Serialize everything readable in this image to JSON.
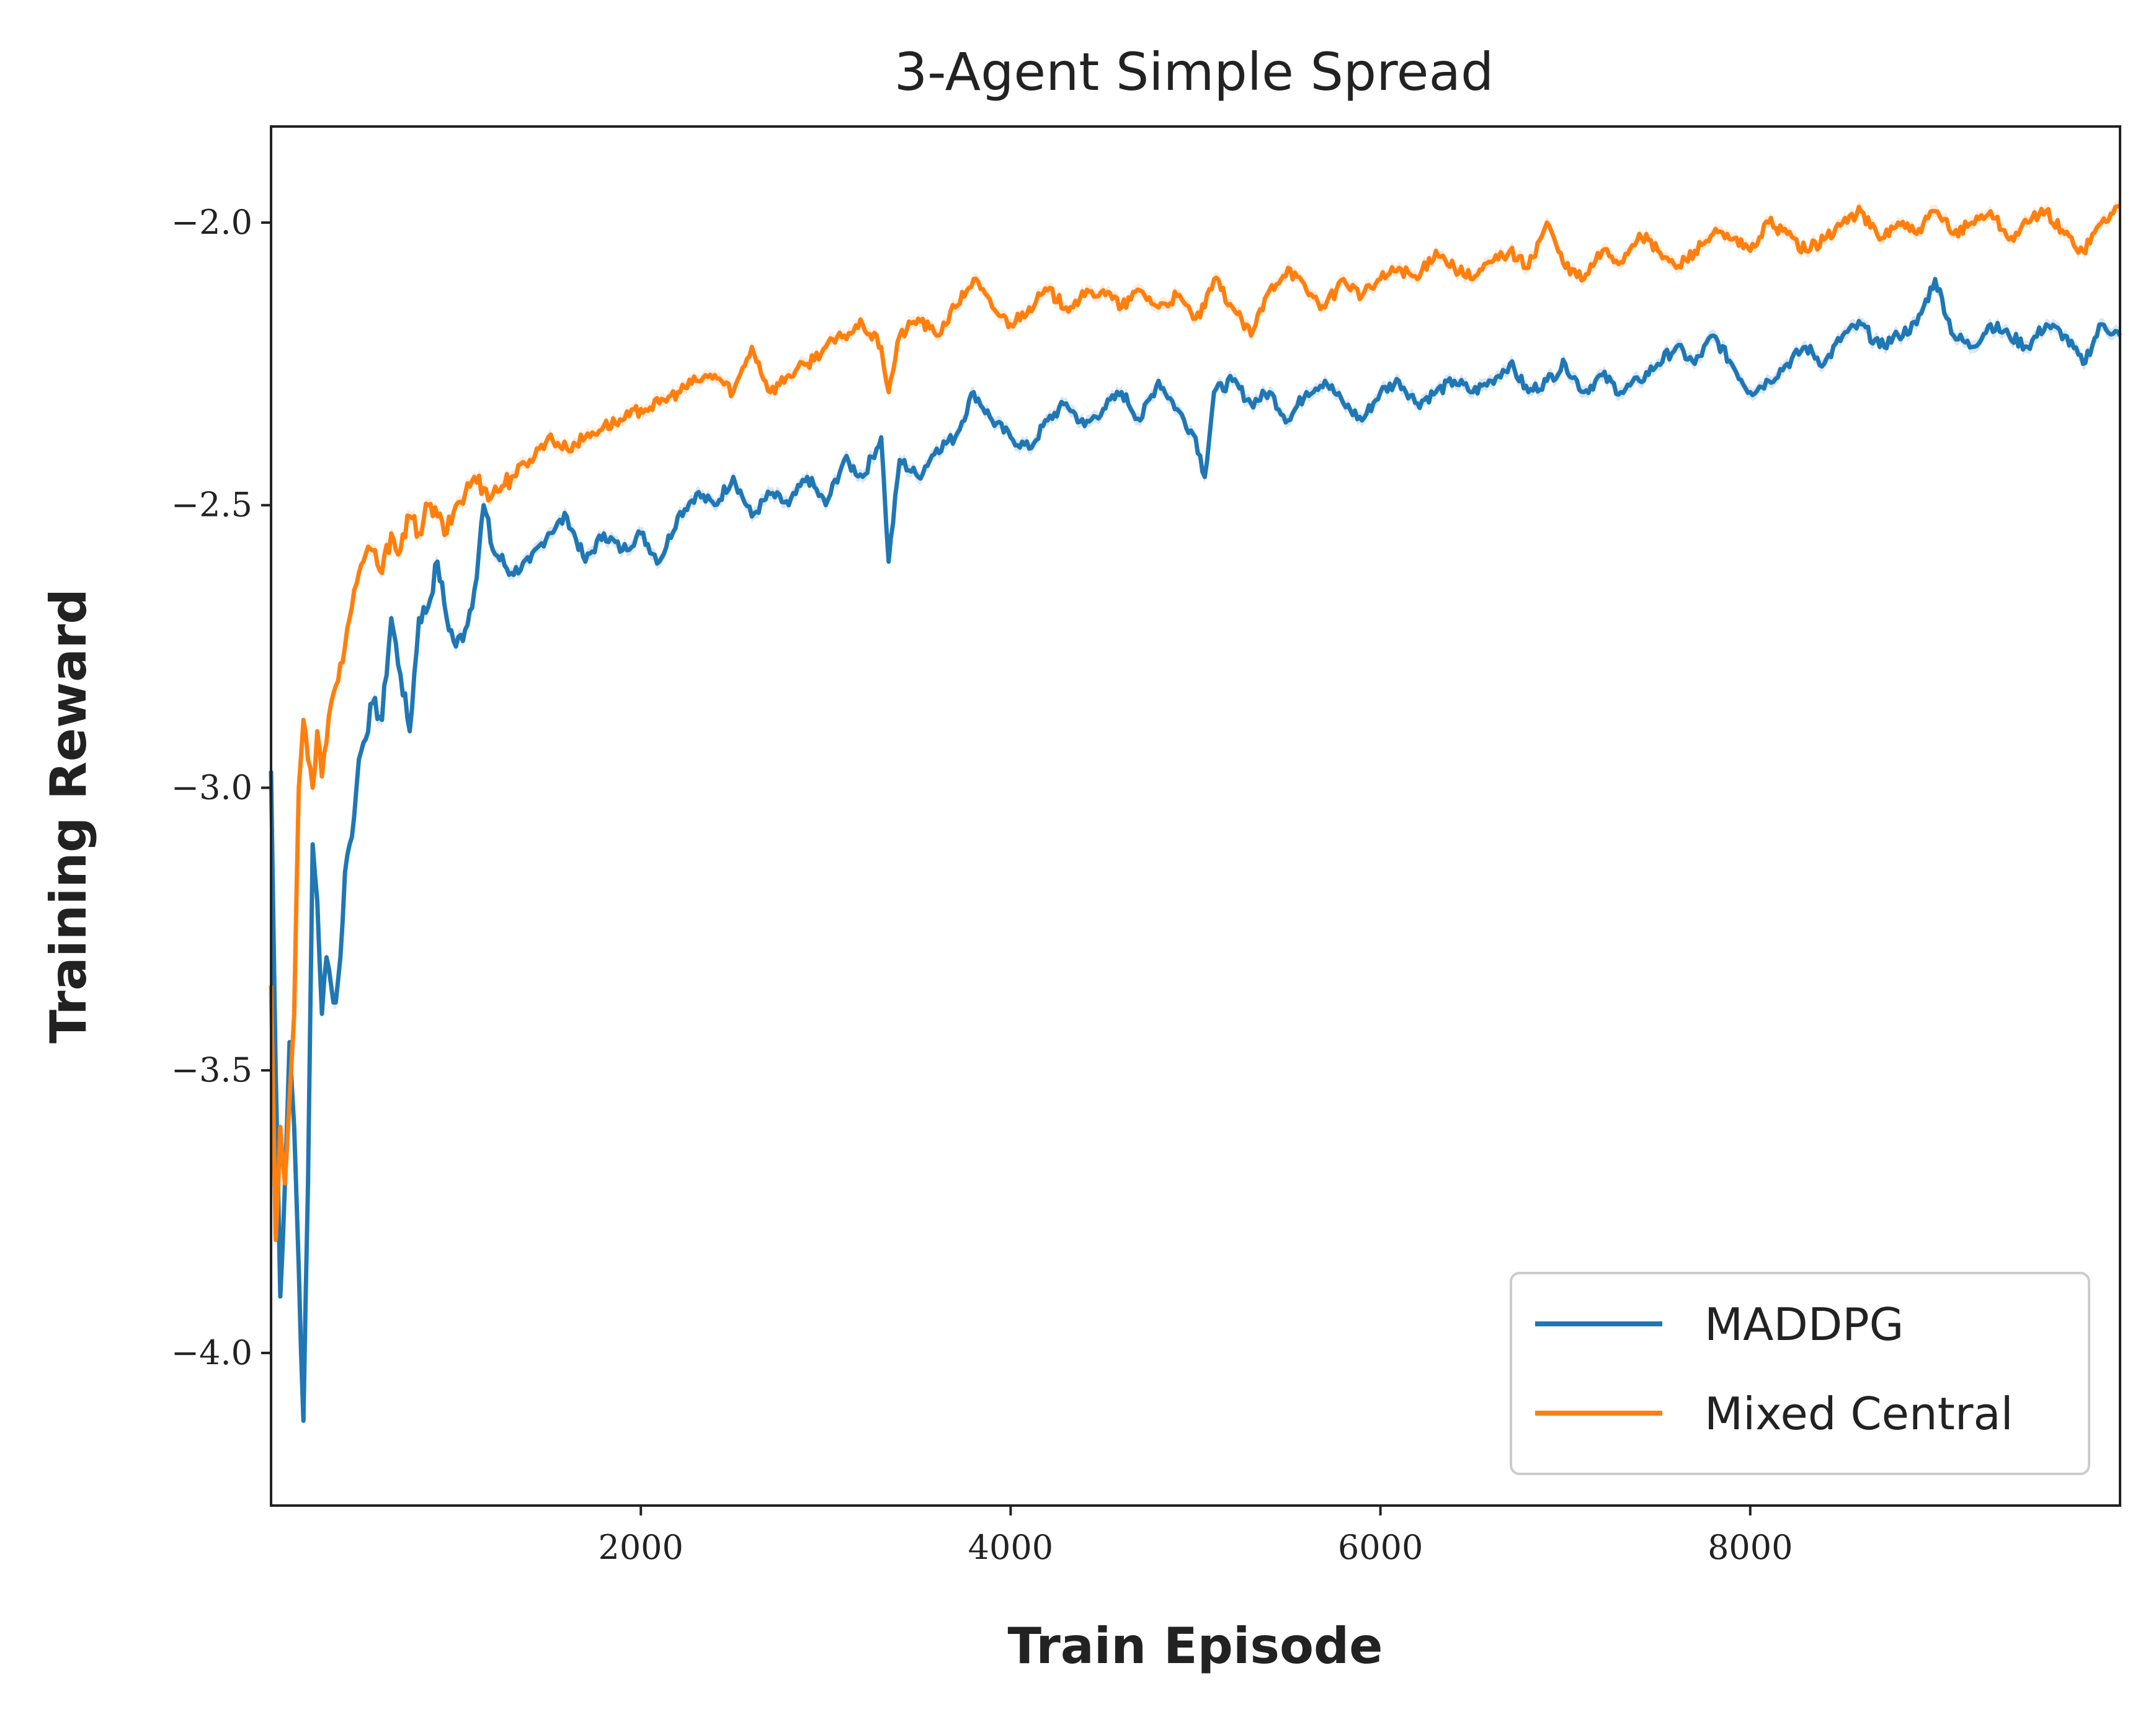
{
  "chart_data": {
    "type": "line",
    "title": "3-Agent Simple Spread",
    "xlabel": "Train Episode",
    "ylabel": "Training Reward",
    "xlim": [
      0,
      10000
    ],
    "ylim": [
      -4.27,
      -1.83
    ],
    "xticks": [
      2000,
      4000,
      6000,
      8000
    ],
    "xtick_labels": [
      "2000",
      "4000",
      "6000",
      "8000"
    ],
    "yticks": [
      -2.0,
      -2.5,
      -3.0,
      -3.5,
      -4.0
    ],
    "ytick_labels": [
      "−2.0",
      "−2.5",
      "−3.0",
      "−3.5",
      "−4.0"
    ],
    "grid": false,
    "legend_position": "lower-right",
    "series": [
      {
        "name": "MADDPG",
        "color": "#1f77b4",
        "band_color": "#c9ddf0",
        "x": [
          0,
          25,
          50,
          75,
          100,
          125,
          150,
          175,
          200,
          225,
          250,
          275,
          300,
          325,
          350,
          375,
          400,
          425,
          450,
          475,
          500,
          550,
          600,
          650,
          700,
          750,
          800,
          850,
          900,
          950,
          1000,
          1050,
          1100,
          1150,
          1200,
          1300,
          1400,
          1500,
          1600,
          1700,
          1800,
          1900,
          2000,
          2100,
          2200,
          2300,
          2400,
          2500,
          2600,
          2700,
          2800,
          2900,
          3000,
          3100,
          3200,
          3300,
          3340,
          3400,
          3500,
          3600,
          3700,
          3800,
          3900,
          4000,
          4100,
          4200,
          4300,
          4400,
          4500,
          4600,
          4700,
          4800,
          4900,
          5000,
          5050,
          5100,
          5200,
          5300,
          5400,
          5500,
          5600,
          5700,
          5800,
          5900,
          6000,
          6100,
          6200,
          6300,
          6400,
          6500,
          6600,
          6700,
          6800,
          6900,
          7000,
          7100,
          7200,
          7300,
          7400,
          7500,
          7600,
          7700,
          7800,
          7900,
          8000,
          8100,
          8200,
          8300,
          8400,
          8500,
          8600,
          8700,
          8800,
          8900,
          9000,
          9100,
          9200,
          9300,
          9400,
          9500,
          9600,
          9700,
          9800,
          9900,
          10000
        ],
        "values": [
          -2.97,
          -3.5,
          -3.9,
          -3.7,
          -3.45,
          -3.6,
          -3.85,
          -4.12,
          -3.7,
          -3.1,
          -3.2,
          -3.4,
          -3.3,
          -3.35,
          -3.38,
          -3.3,
          -3.15,
          -3.1,
          -3.05,
          -2.95,
          -2.92,
          -2.85,
          -2.88,
          -2.7,
          -2.8,
          -2.9,
          -2.7,
          -2.68,
          -2.6,
          -2.7,
          -2.75,
          -2.72,
          -2.65,
          -2.5,
          -2.58,
          -2.62,
          -2.6,
          -2.55,
          -2.52,
          -2.6,
          -2.55,
          -2.58,
          -2.55,
          -2.6,
          -2.52,
          -2.48,
          -2.5,
          -2.45,
          -2.52,
          -2.48,
          -2.5,
          -2.45,
          -2.5,
          -2.42,
          -2.45,
          -2.38,
          -2.6,
          -2.42,
          -2.45,
          -2.4,
          -2.38,
          -2.3,
          -2.35,
          -2.38,
          -2.4,
          -2.35,
          -2.32,
          -2.36,
          -2.33,
          -2.3,
          -2.35,
          -2.28,
          -2.33,
          -2.38,
          -2.45,
          -2.3,
          -2.28,
          -2.32,
          -2.3,
          -2.35,
          -2.3,
          -2.28,
          -2.32,
          -2.35,
          -2.3,
          -2.28,
          -2.32,
          -2.3,
          -2.28,
          -2.3,
          -2.28,
          -2.25,
          -2.3,
          -2.28,
          -2.25,
          -2.3,
          -2.27,
          -2.3,
          -2.28,
          -2.25,
          -2.22,
          -2.25,
          -2.2,
          -2.25,
          -2.3,
          -2.28,
          -2.25,
          -2.22,
          -2.25,
          -2.2,
          -2.18,
          -2.22,
          -2.2,
          -2.18,
          -2.1,
          -2.2,
          -2.22,
          -2.18,
          -2.2,
          -2.22,
          -2.18,
          -2.2,
          -2.25,
          -2.18,
          -2.2
        ]
      },
      {
        "name": "Mixed Central",
        "color": "#ff7f0e",
        "band_color": "#fde2cb",
        "x": [
          0,
          25,
          50,
          75,
          100,
          125,
          150,
          175,
          200,
          225,
          250,
          275,
          300,
          325,
          350,
          375,
          400,
          425,
          450,
          475,
          500,
          550,
          600,
          650,
          700,
          750,
          800,
          850,
          900,
          950,
          1000,
          1050,
          1100,
          1150,
          1200,
          1300,
          1400,
          1500,
          1600,
          1700,
          1800,
          1900,
          2000,
          2100,
          2200,
          2300,
          2400,
          2500,
          2600,
          2700,
          2800,
          2900,
          3000,
          3100,
          3200,
          3300,
          3340,
          3400,
          3500,
          3600,
          3700,
          3800,
          3900,
          4000,
          4100,
          4200,
          4300,
          4400,
          4500,
          4600,
          4700,
          4800,
          4900,
          5000,
          5050,
          5100,
          5200,
          5300,
          5400,
          5500,
          5600,
          5700,
          5800,
          5900,
          6000,
          6100,
          6200,
          6300,
          6400,
          6500,
          6600,
          6700,
          6800,
          6900,
          7000,
          7100,
          7200,
          7300,
          7400,
          7500,
          7600,
          7700,
          7800,
          7900,
          8000,
          8100,
          8200,
          8300,
          8400,
          8500,
          8600,
          8700,
          8800,
          8900,
          9000,
          9100,
          9200,
          9300,
          9400,
          9500,
          9600,
          9700,
          9800,
          9900,
          10000
        ],
        "values": [
          -3.35,
          -3.8,
          -3.6,
          -3.7,
          -3.55,
          -3.4,
          -3.0,
          -2.88,
          -2.95,
          -3.0,
          -2.9,
          -2.98,
          -2.92,
          -2.85,
          -2.82,
          -2.78,
          -2.75,
          -2.7,
          -2.65,
          -2.62,
          -2.6,
          -2.58,
          -2.62,
          -2.55,
          -2.58,
          -2.52,
          -2.55,
          -2.5,
          -2.52,
          -2.55,
          -2.5,
          -2.48,
          -2.45,
          -2.47,
          -2.48,
          -2.45,
          -2.42,
          -2.38,
          -2.4,
          -2.38,
          -2.36,
          -2.35,
          -2.33,
          -2.32,
          -2.3,
          -2.28,
          -2.27,
          -2.3,
          -2.22,
          -2.3,
          -2.27,
          -2.25,
          -2.22,
          -2.2,
          -2.18,
          -2.22,
          -2.3,
          -2.2,
          -2.17,
          -2.2,
          -2.15,
          -2.1,
          -2.15,
          -2.18,
          -2.15,
          -2.12,
          -2.15,
          -2.13,
          -2.12,
          -2.15,
          -2.12,
          -2.15,
          -2.13,
          -2.17,
          -2.15,
          -2.1,
          -2.15,
          -2.2,
          -2.12,
          -2.08,
          -2.12,
          -2.15,
          -2.1,
          -2.13,
          -2.1,
          -2.08,
          -2.1,
          -2.05,
          -2.08,
          -2.1,
          -2.07,
          -2.05,
          -2.08,
          -2.0,
          -2.08,
          -2.1,
          -2.05,
          -2.07,
          -2.02,
          -2.05,
          -2.08,
          -2.05,
          -2.02,
          -2.03,
          -2.05,
          -2.0,
          -2.02,
          -2.05,
          -2.03,
          -2.0,
          -1.98,
          -2.03,
          -2.0,
          -2.02,
          -1.98,
          -2.02,
          -2.0,
          -1.98,
          -2.03,
          -2.0,
          -1.98,
          -2.02,
          -2.05,
          -2.0,
          -1.97
        ]
      }
    ]
  }
}
